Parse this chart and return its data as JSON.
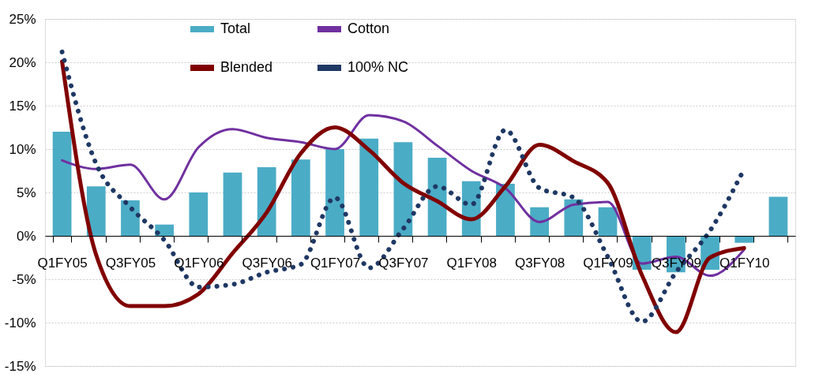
{
  "chart_data": {
    "type": "bar",
    "categories": [
      "Q1FY05",
      null,
      "Q3FY05",
      null,
      "Q1FY06",
      null,
      "Q3FY06",
      null,
      "Q1FY07",
      null,
      "Q3FY07",
      null,
      "Q1FY08",
      null,
      "Q3FY08",
      null,
      "Q1FY09",
      null,
      "Q3FY09",
      null,
      "Q1FY10",
      null
    ],
    "series": [
      {
        "name": "Total",
        "color": "#4bacc6",
        "values": [
          12.0,
          5.7,
          4.1,
          1.3,
          5.0,
          7.3,
          7.9,
          8.8,
          10.0,
          11.2,
          10.8,
          9.0,
          6.3,
          6.0,
          3.3,
          4.2,
          3.3,
          -3.9,
          -4.2,
          -3.9,
          -0.8,
          4.5
        ]
      },
      {
        "name": "Cotton",
        "type": "line",
        "color": "#7030a0",
        "line_style": "solid",
        "values": [
          8.7,
          7.7,
          8.2,
          4.2,
          10.2,
          12.3,
          11.3,
          10.8,
          10.0,
          13.9,
          13.2,
          10.4,
          7.5,
          5.5,
          1.6,
          3.6,
          3.9,
          -3.2,
          -2.4,
          -4.6,
          -1.6,
          null
        ]
      },
      {
        "name": "Blended",
        "type": "line",
        "color": "#800000",
        "line_style": "solid",
        "values": [
          20.1,
          -2.2,
          -8.1,
          -8.1,
          -6.7,
          -2.0,
          2.7,
          9.5,
          12.5,
          9.9,
          6.1,
          4.0,
          1.9,
          5.7,
          10.5,
          8.6,
          6.1,
          -4.5,
          -11.1,
          -2.5,
          -1.4,
          null
        ]
      },
      {
        "name": "100% NC",
        "type": "line",
        "color": "#1f3864",
        "line_style": "dotted",
        "values": [
          21.2,
          8.3,
          3.3,
          -0.5,
          -5.9,
          -5.6,
          -4.2,
          -3.3,
          4.4,
          -3.7,
          0.8,
          5.7,
          3.6,
          12.2,
          5.5,
          4.4,
          -2.4,
          -9.9,
          -4.2,
          0.6,
          7.7,
          null
        ]
      }
    ],
    "ylim": [
      -15,
      25
    ],
    "yticks": [
      {
        "value": -15,
        "label": "-15%"
      },
      {
        "value": -10,
        "label": "-10%"
      },
      {
        "value": -5,
        "label": "-5%"
      },
      {
        "value": 0,
        "label": "0%"
      },
      {
        "value": 5,
        "label": "5%"
      },
      {
        "value": 10,
        "label": "10%"
      },
      {
        "value": 15,
        "label": "15%"
      },
      {
        "value": 20,
        "label": "20%"
      },
      {
        "value": 25,
        "label": "25%"
      }
    ],
    "grid": "y",
    "legend": "top",
    "marker": "none"
  }
}
